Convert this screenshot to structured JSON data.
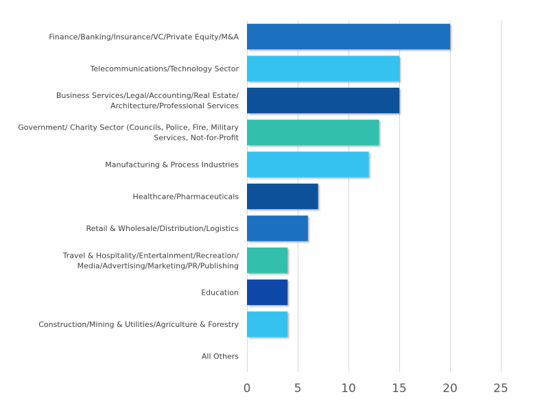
{
  "chart_data": {
    "type": "bar",
    "orientation": "horizontal",
    "categories": [
      [
        "Finance/Banking/Insurance/VC/Private Equity/M&A"
      ],
      [
        "Telecommunications/Technology Sector"
      ],
      [
        "Business Services/Legal/Accounting/Real Estate/",
        "Architecture/Professional Services"
      ],
      [
        "Government/ Charity Sector (Councils, Police, Fire, Military",
        "Services, Not-for-Profit"
      ],
      [
        "Manufacturing & Process Industries"
      ],
      [
        "Healthcare/Pharmaceuticals"
      ],
      [
        "Retail & Wholesale/Distribution/Logistics"
      ],
      [
        "Travel & Hospitality/Entertainment/Recreation/",
        "Media/Advertising/Marketing/PR/Publishing"
      ],
      [
        "Education"
      ],
      [
        "Construction/Mining & Utilities/Agriculture & Forestry"
      ],
      [
        "All Others"
      ]
    ],
    "values": [
      20,
      15,
      15,
      13,
      12,
      7,
      6,
      4,
      4,
      4,
      0
    ],
    "bar_colors": [
      "#1f6fc1",
      "#36c2f0",
      "#07519a",
      "#31bfac",
      "#36c2f0",
      "#07519a",
      "#1f6fc1",
      "#31bfac",
      "#0a46a8",
      "#36c2f0",
      "#1f6fc1"
    ],
    "xlim": [
      0,
      25
    ],
    "xticks": [
      0,
      5,
      10,
      15,
      20,
      25
    ],
    "grid": true,
    "legend": "none",
    "title": "",
    "xlabel": "",
    "ylabel": ""
  }
}
